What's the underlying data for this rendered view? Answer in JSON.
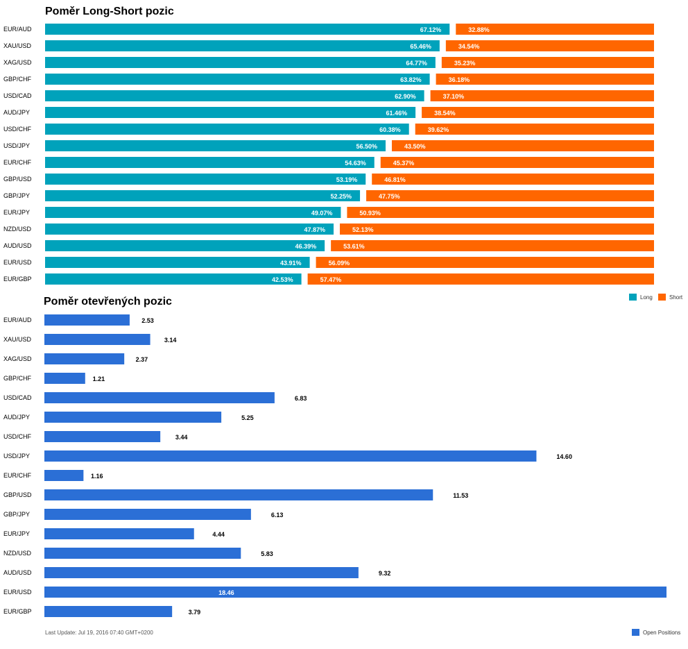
{
  "colors": {
    "long": "#00a2bb",
    "short": "#ff6600",
    "open": "#2b6fd6"
  },
  "chart_data": [
    {
      "type": "bar",
      "stacked": true,
      "orientation": "horizontal",
      "title": "Poměr Long-Short pozic",
      "categories": [
        "EUR/AUD",
        "XAU/USD",
        "XAG/USD",
        "GBP/CHF",
        "USD/CAD",
        "AUD/JPY",
        "USD/CHF",
        "USD/JPY",
        "EUR/CHF",
        "GBP/USD",
        "GBP/JPY",
        "EUR/JPY",
        "NZD/USD",
        "AUD/USD",
        "EUR/USD",
        "EUR/GBP"
      ],
      "series": [
        {
          "name": "Long",
          "values": [
            67.12,
            65.46,
            64.77,
            63.82,
            62.9,
            61.46,
            60.38,
            56.5,
            54.63,
            53.19,
            52.25,
            49.07,
            47.87,
            46.39,
            43.91,
            42.53
          ],
          "labels": [
            "67.12%",
            "65.46%",
            "64.77%",
            "63.82%",
            "62.90%",
            "61.46%",
            "60.38%",
            "56.50%",
            "54.63%",
            "53.19%",
            "52.25%",
            "49.07%",
            "47.87%",
            "46.39%",
            "43.91%",
            "42.53%"
          ]
        },
        {
          "name": "Short",
          "values": [
            32.88,
            34.54,
            35.23,
            36.18,
            37.1,
            38.54,
            39.62,
            43.5,
            45.37,
            46.81,
            47.75,
            50.93,
            52.13,
            53.61,
            56.09,
            57.47
          ],
          "labels": [
            "32.88%",
            "34.54%",
            "35.23%",
            "36.18%",
            "37.10%",
            "38.54%",
            "39.62%",
            "43.50%",
            "45.37%",
            "46.81%",
            "47.75%",
            "50.93%",
            "52.13%",
            "53.61%",
            "56.09%",
            "57.47%"
          ]
        }
      ],
      "legend_position": "bottom-right"
    },
    {
      "type": "bar",
      "orientation": "horizontal",
      "title": "Poměr otevřených pozic",
      "categories": [
        "EUR/AUD",
        "XAU/USD",
        "XAG/USD",
        "GBP/CHF",
        "USD/CAD",
        "AUD/JPY",
        "USD/CHF",
        "USD/JPY",
        "EUR/CHF",
        "GBP/USD",
        "GBP/JPY",
        "EUR/JPY",
        "NZD/USD",
        "AUD/USD",
        "EUR/USD",
        "EUR/GBP"
      ],
      "series": [
        {
          "name": "Open Positions",
          "values": [
            2.53,
            3.14,
            2.37,
            1.21,
            6.83,
            5.25,
            3.44,
            14.6,
            1.16,
            11.53,
            6.13,
            4.44,
            5.83,
            9.32,
            18.46,
            3.79
          ],
          "labels": [
            "2.53",
            "3.14",
            "2.37",
            "1.21",
            "6.83",
            "5.25",
            "3.44",
            "14.60",
            "1.16",
            "11.53",
            "6.13",
            "4.44",
            "5.83",
            "9.32",
            "18.46",
            "3.79"
          ]
        }
      ],
      "legend_position": "bottom-right"
    }
  ],
  "footer": {
    "last_update": "Last Update: Jul 19, 2016 07:40 GMT+0200"
  }
}
